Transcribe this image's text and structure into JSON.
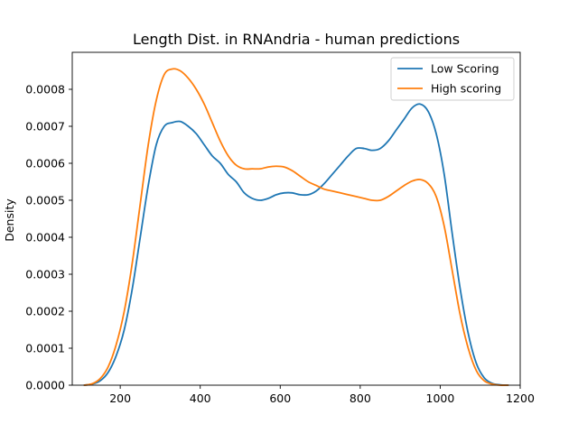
{
  "chart_data": {
    "type": "line",
    "title": "Length Dist. in RNAndria - human predictions",
    "xlabel": "",
    "ylabel": "Density",
    "xlim": [
      80,
      1200
    ],
    "ylim": [
      0,
      0.0009
    ],
    "xticks": [
      200,
      400,
      600,
      800,
      1000,
      1200
    ],
    "yticks": [
      0.0,
      0.0001,
      0.0002,
      0.0003,
      0.0004,
      0.0005,
      0.0006,
      0.0007,
      0.0008
    ],
    "ytick_labels": [
      "0.0000",
      "0.0001",
      "0.0002",
      "0.0003",
      "0.0004",
      "0.0005",
      "0.0006",
      "0.0007",
      "0.0008"
    ],
    "grid": false,
    "legend_position": "top-right",
    "series": [
      {
        "name": "Low Scoring",
        "color": "#1f77b4",
        "points": [
          [
            110,
            0.0
          ],
          [
            130,
            3e-06
          ],
          [
            150,
            1.2e-05
          ],
          [
            170,
            3.5e-05
          ],
          [
            190,
            8e-05
          ],
          [
            210,
            0.00015
          ],
          [
            230,
            0.00026
          ],
          [
            250,
            0.0004
          ],
          [
            270,
            0.00054
          ],
          [
            290,
            0.00065
          ],
          [
            310,
            0.0007
          ],
          [
            330,
            0.00071
          ],
          [
            350,
            0.000713
          ],
          [
            370,
            0.0007
          ],
          [
            390,
            0.00068
          ],
          [
            410,
            0.00065
          ],
          [
            430,
            0.00062
          ],
          [
            450,
            0.0006
          ],
          [
            470,
            0.00057
          ],
          [
            490,
            0.00055
          ],
          [
            510,
            0.00052
          ],
          [
            530,
            0.000505
          ],
          [
            550,
            0.0005
          ],
          [
            570,
            0.000505
          ],
          [
            590,
            0.000515
          ],
          [
            610,
            0.00052
          ],
          [
            630,
            0.00052
          ],
          [
            650,
            0.000515
          ],
          [
            670,
            0.000515
          ],
          [
            690,
            0.000525
          ],
          [
            710,
            0.000545
          ],
          [
            730,
            0.00057
          ],
          [
            750,
            0.000595
          ],
          [
            770,
            0.00062
          ],
          [
            790,
            0.00064
          ],
          [
            810,
            0.00064
          ],
          [
            830,
            0.000635
          ],
          [
            850,
            0.00064
          ],
          [
            870,
            0.00066
          ],
          [
            890,
            0.00069
          ],
          [
            910,
            0.00072
          ],
          [
            930,
            0.00075
          ],
          [
            950,
            0.00076
          ],
          [
            970,
            0.00074
          ],
          [
            990,
            0.00068
          ],
          [
            1010,
            0.00057
          ],
          [
            1030,
            0.00041
          ],
          [
            1050,
            0.00026
          ],
          [
            1070,
            0.00014
          ],
          [
            1090,
            6e-05
          ],
          [
            1110,
            2e-05
          ],
          [
            1130,
            5e-06
          ],
          [
            1150,
            1e-06
          ],
          [
            1170,
            0.0
          ]
        ]
      },
      {
        "name": "High scoring",
        "color": "#ff7f0e",
        "points": [
          [
            110,
            0.0
          ],
          [
            130,
            4e-06
          ],
          [
            150,
            1.8e-05
          ],
          [
            170,
            5e-05
          ],
          [
            190,
            0.00011
          ],
          [
            210,
            0.0002
          ],
          [
            230,
            0.00033
          ],
          [
            250,
            0.00049
          ],
          [
            270,
            0.00065
          ],
          [
            290,
            0.00077
          ],
          [
            310,
            0.00084
          ],
          [
            330,
            0.000855
          ],
          [
            350,
            0.00085
          ],
          [
            370,
            0.00083
          ],
          [
            390,
            0.0008
          ],
          [
            410,
            0.00076
          ],
          [
            430,
            0.00071
          ],
          [
            450,
            0.00066
          ],
          [
            470,
            0.00062
          ],
          [
            490,
            0.000595
          ],
          [
            510,
            0.000585
          ],
          [
            530,
            0.000585
          ],
          [
            550,
            0.000585
          ],
          [
            570,
            0.00059
          ],
          [
            590,
            0.000592
          ],
          [
            610,
            0.00059
          ],
          [
            630,
            0.00058
          ],
          [
            650,
            0.000565
          ],
          [
            670,
            0.00055
          ],
          [
            690,
            0.00054
          ],
          [
            710,
            0.00053
          ],
          [
            730,
            0.000525
          ],
          [
            750,
            0.00052
          ],
          [
            770,
            0.000515
          ],
          [
            790,
            0.00051
          ],
          [
            810,
            0.000505
          ],
          [
            830,
            0.0005
          ],
          [
            850,
            0.0005
          ],
          [
            870,
            0.00051
          ],
          [
            890,
            0.000525
          ],
          [
            910,
            0.00054
          ],
          [
            930,
            0.000552
          ],
          [
            950,
            0.000556
          ],
          [
            970,
            0.000545
          ],
          [
            990,
            0.00051
          ],
          [
            1010,
            0.00043
          ],
          [
            1030,
            0.00031
          ],
          [
            1050,
            0.00019
          ],
          [
            1070,
            0.0001
          ],
          [
            1090,
            4e-05
          ],
          [
            1110,
            1.2e-05
          ],
          [
            1130,
            3e-06
          ],
          [
            1150,
            0.0
          ],
          [
            1170,
            0.0
          ]
        ]
      }
    ]
  }
}
